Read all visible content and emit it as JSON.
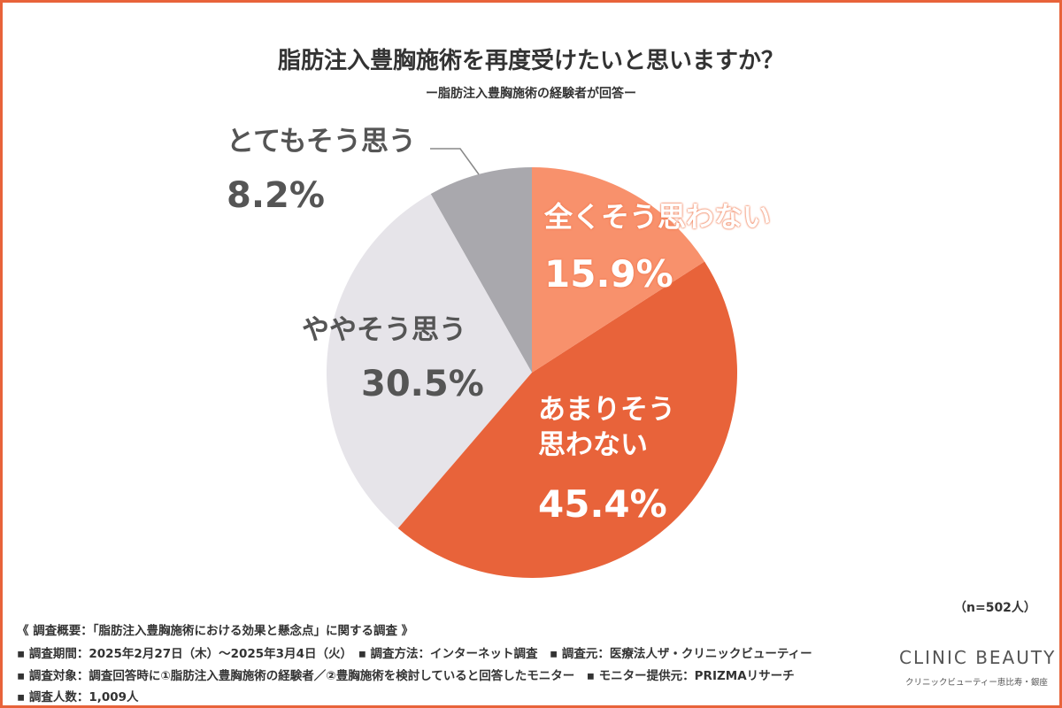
{
  "chart_data": {
    "type": "pie",
    "title": "脂肪注入豊胸施術を再度受けたいと思いますか？",
    "subtitle": "ー脂肪注入豊胸施術の経験者が回答ー",
    "categories": [
      "全くそう思わない",
      "あまりそう\n思わない",
      "ややそう思う",
      "とてもそう思う"
    ],
    "values": [
      15.9,
      45.4,
      30.5,
      8.2
    ],
    "value_labels": [
      "15.9%",
      "45.4%",
      "30.5%",
      "8.2%"
    ],
    "colors": [
      "#f8916c",
      "#e8633a",
      "#e6e4e9",
      "#a9a8ad"
    ],
    "note": "（n=502人）"
  },
  "footer": {
    "lines": [
      "《 調査概要：「脂肪注入豊胸施術における効果と懸念点」に関する調査 》",
      "▪ 調査期間：2025年2月27日（木）〜2025年3月4日（火）　▪ 調査方法：インターネット調査　▪ 調査元：医療法人ザ・クリニックビューティー",
      "▪ 調査対象：調査回答時に①脂肪注入豊胸施術の経験者／②豊胸施術を検討していると回答したモニター　▪ モニター提供元：PRIZMAリサーチ",
      "▪ 調査人数：1,009人"
    ]
  },
  "logo": {
    "name": "CLINIC BEAUTY",
    "sub": "クリニックビューティー恵比寿・銀座"
  }
}
